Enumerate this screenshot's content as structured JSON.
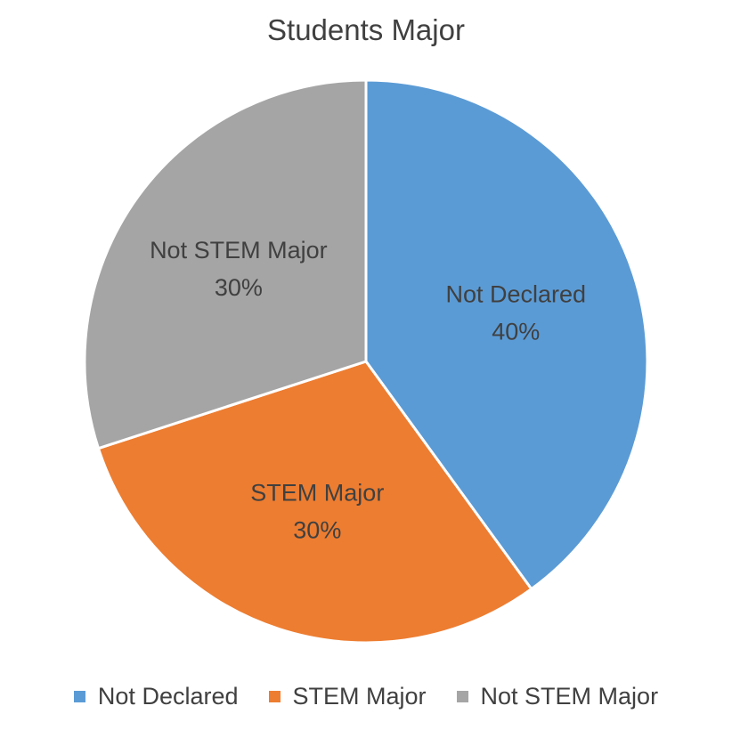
{
  "chart_data": {
    "type": "pie",
    "title": "Students Major",
    "categories": [
      "Not Declared",
      "STEM Major",
      "Not STEM Major"
    ],
    "values": [
      40,
      30,
      30
    ],
    "labels": [
      "40%",
      "30%",
      "30%"
    ],
    "colors": [
      "#5B9BD5",
      "#ED7D31",
      "#A5A5A5"
    ],
    "legend_position": "bottom"
  }
}
